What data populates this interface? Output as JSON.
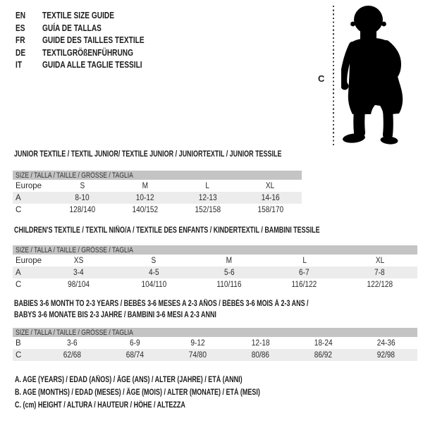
{
  "languages": [
    {
      "code": "EN",
      "title": "TEXTILE SIZE GUIDE"
    },
    {
      "code": "ES",
      "title": "GUÍA DE TALLAS"
    },
    {
      "code": "FR",
      "title": "GUIDE DES TAILLES TEXTILE"
    },
    {
      "code": "DE",
      "title": "TEXTILGRÖßENFÜHRUNG"
    },
    {
      "code": "IT",
      "title": "GUIDA ALLE TAGLIE TESSILI"
    }
  ],
  "figure": {
    "label": "C"
  },
  "tables": [
    {
      "title": "JUNIOR TEXTILE / TEXTIL JUNIOR/ TEXTILE JUNIOR / JUNIORTEXTIL / JUNIOR TESSILE",
      "header": "SIZE / TALLA / TAILLE / GRÖSSE / TAGLIA",
      "rows": [
        {
          "label": "Europe",
          "values": [
            "S",
            "M",
            "L",
            "XL"
          ]
        },
        {
          "label": "A",
          "values": [
            "8-10",
            "10-12",
            "12-13",
            "14-16"
          ]
        },
        {
          "label": "C",
          "values": [
            "128/140",
            "140/152",
            "152/158",
            "158/170"
          ]
        }
      ]
    },
    {
      "title": "CHILDREN'S TEXTILE / TEXTIL NIÑO/A / TEXTILE DES ENFANTS / KINDERTEXTIL / BAMBINI TESSILE",
      "header": "SIZE / TALLA / TAILLE / GRÖSSE / TAGLIA",
      "rows": [
        {
          "label": "Europe",
          "values": [
            "XS",
            "S",
            "M",
            "L",
            "XL"
          ]
        },
        {
          "label": "A",
          "values": [
            "3-4",
            "4-5",
            "5-6",
            "6-7",
            "7-8"
          ]
        },
        {
          "label": "C",
          "values": [
            "98/104",
            "104/110",
            "110/116",
            "116/122",
            "122/128"
          ]
        }
      ]
    },
    {
      "title": "BABIES 3-6 MONTH TO 2-3 YEARS / BEBÉS 3-6 MESES A 2-3 AÑOS / BÉBÉS 3-6 MOIS À 2-3 ANS /",
      "title2": "BABYS 3-6 MONATE BIS 2-3 JAHRE / BAMBINI 3-6 MESI A 2-3 ANNI",
      "header": "SIZE / TALLA / TAILLE / GRÖSSE / TAGLIA",
      "rows": [
        {
          "label": "B",
          "values": [
            "3-6",
            "6-9",
            "9-12",
            "12-18",
            "18-24",
            "24-36"
          ]
        },
        {
          "label": "C",
          "values": [
            "62/68",
            "68/74",
            "74/80",
            "80/86",
            "86/92",
            "92/98"
          ]
        }
      ]
    }
  ],
  "footnotes": [
    "A. AGE (YEARS) / EDAD (AÑOS) / ÂGE (ANS) / ALTER (JAHRE) / ETÀ (ANNI)",
    "B. AGE (MONTHS) / EDAD (MESES) / ÂGE (MOIS) / ALTER (MONATE) / ETÀ (MESI)",
    "C. (cm) HEIGHT / ALTURA / HAUTEUR / HÖHE / ALTEZZA"
  ],
  "colors": {
    "header_band": "#c4c4c4",
    "stripe_row": "#ececec",
    "text": "#262626",
    "silhouette": "#000000"
  }
}
